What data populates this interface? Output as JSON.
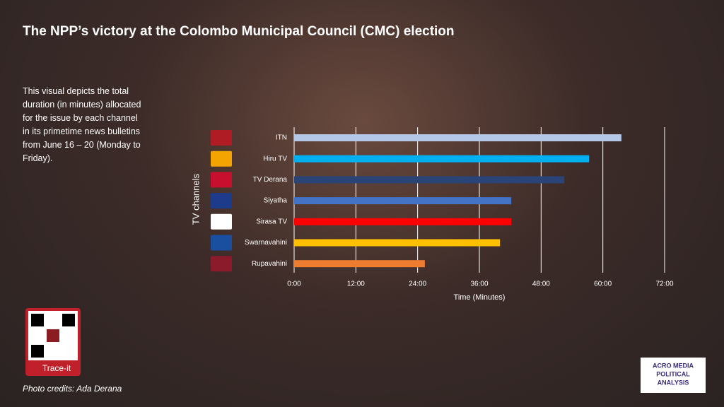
{
  "header": {
    "title": "The NPP’s victory at the Colombo Municipal Council (CMC) election",
    "description": "This visual depicts the total duration (in minutes) allocated for the issue by each channel in its primetime news bulletins from June 16 – 20 (Monday to Friday)."
  },
  "chart_data": {
    "type": "bar",
    "orientation": "horizontal",
    "categories": [
      "ITN",
      "Hiru TV",
      "TV Derana",
      "Siyatha",
      "Sirasa TV",
      "Swarnavahini",
      "Rupavahini"
    ],
    "values": [
      63.6,
      57.3,
      52.5,
      42.2,
      42.2,
      40.0,
      25.4
    ],
    "colors": [
      "#b4c7e7",
      "#00b0f0",
      "#2b4478",
      "#4472c4",
      "#ff0000",
      "#ffc000",
      "#ed7d31"
    ],
    "xlim": [
      0,
      72
    ],
    "xticks": [
      {
        "value": 0,
        "label": "0:00"
      },
      {
        "value": 12,
        "label": "12:00"
      },
      {
        "value": 24,
        "label": "24:00"
      },
      {
        "value": 36,
        "label": "36:00"
      },
      {
        "value": 48,
        "label": "48:00"
      },
      {
        "value": 60,
        "label": "60:00"
      },
      {
        "value": 72,
        "label": "72:00"
      }
    ],
    "x_axis_label": "Time (Minutes)",
    "y_axis_label": "TV channels",
    "grid": true
  },
  "footer": {
    "trace_label": "Trace-it",
    "photo_credit": "Photo credits: Ada Derana",
    "logo": [
      "ACRO MEDIA",
      "POLITICAL",
      "ANALYSIS"
    ]
  }
}
